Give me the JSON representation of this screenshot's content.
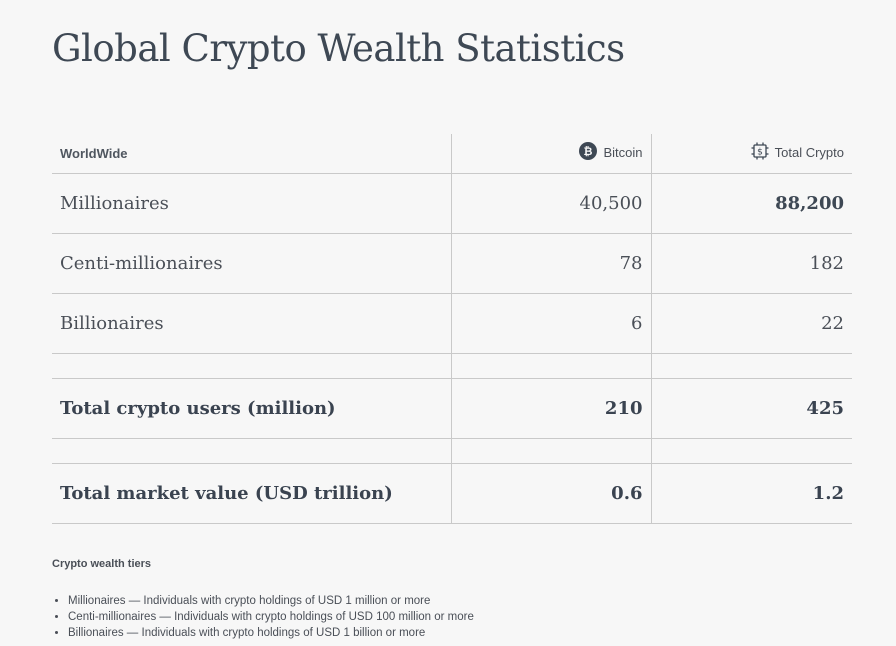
{
  "page": {
    "title": "Global Crypto Wealth Statistics"
  },
  "table": {
    "headers": {
      "region": "WorldWide",
      "bitcoin": "Bitcoin",
      "bitcoin_icon": "bitcoin-icon",
      "total": "Total Crypto",
      "total_icon": "chip-dollar-icon"
    },
    "rows": [
      {
        "label": "Millionaires",
        "bitcoin": "40,500",
        "total": "88,200"
      },
      {
        "label": "Centi-millionaires",
        "bitcoin": "78",
        "total": "182"
      },
      {
        "label": "Billionaires",
        "bitcoin": "6",
        "total": "22"
      }
    ],
    "totals": [
      {
        "label": "Total crypto users (million)",
        "bitcoin": "210",
        "total": "425"
      },
      {
        "label": "Total market value (USD trillion)",
        "bitcoin": "0.6",
        "total": "1.2"
      }
    ]
  },
  "footnote": {
    "title": "Crypto wealth tiers",
    "items": [
      "Millionaires — Individuals with crypto holdings of USD 1 million or more",
      "Centi-millionaires — Individuals with crypto holdings of USD 100 million or more",
      "Billionaires — Individuals with crypto holdings of USD 1 billion or more"
    ]
  },
  "colors": {
    "background": "#f7f7f7",
    "text": "#444b55",
    "rule": "#c9c9c9",
    "icon": "#3e4854"
  }
}
